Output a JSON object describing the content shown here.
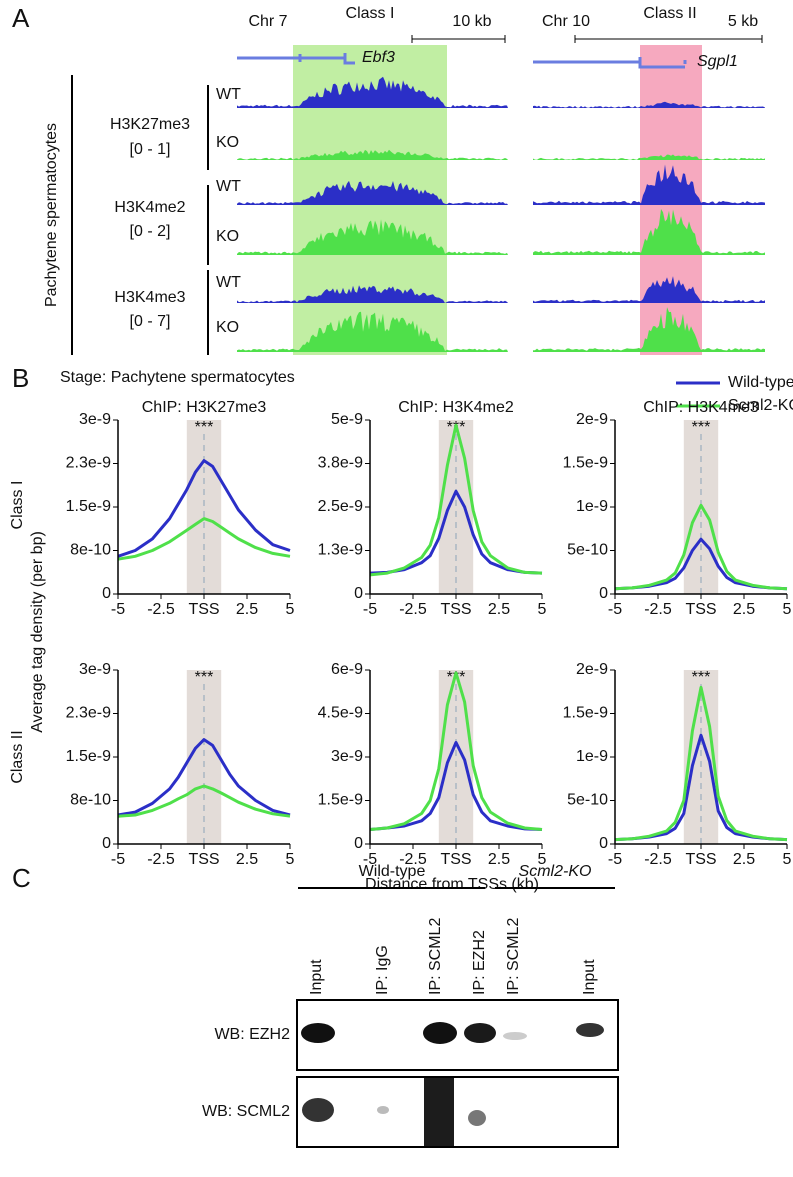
{
  "panel_a": {
    "label": "A",
    "chr_left": "Chr 7",
    "class_left": "Class I",
    "scale_left": "10 kb",
    "chr_right": "Chr 10",
    "class_right": "Class II",
    "scale_right": "5 kb",
    "gene_left": "Ebf3",
    "gene_right": "Sgpl1",
    "cell_type": "Pachytene spermatocytes",
    "groups": [
      {
        "mark": "H3K27me3",
        "range": "[0 - 1]",
        "wt": "WT",
        "ko": "KO"
      },
      {
        "mark": "H3K4me2",
        "range": "[0 - 2]",
        "wt": "WT",
        "ko": "KO"
      },
      {
        "mark": "H3K4me3",
        "range": "[0 - 7]",
        "wt": "WT",
        "ko": "KO"
      }
    ]
  },
  "panel_b": {
    "label": "B",
    "stage": "Stage: Pachytene spermatocytes",
    "rows": [
      "Class I",
      "Class II"
    ],
    "ylabel": "Average tag density (per bp)",
    "xlabel": "Distance from TSSs (kb)"
  },
  "chart_data": [
    {
      "type": "line",
      "title": "ChIP: H3K27me3",
      "annotation": "***",
      "highlight": [
        -1,
        1
      ],
      "x": [
        -5,
        -4,
        -3,
        -2,
        -1.5,
        -1,
        -0.5,
        0,
        0.5,
        1,
        1.5,
        2,
        3,
        4,
        5
      ],
      "xlim": [
        -5,
        5
      ],
      "xticks": [
        -5,
        -2.5,
        {
          "value": 0,
          "label": "TSS"
        },
        2.5,
        5
      ],
      "ylim": [
        0,
        3e-09
      ],
      "yticks": [
        0,
        {
          "value": 7.5e-10,
          "label": "8e-10"
        },
        1.5e-09,
        {
          "value": 2.25e-09,
          "label": "2.3e-9"
        },
        3e-09
      ],
      "series": [
        {
          "name": "Wild-type",
          "color": "#2b2fc7",
          "values": [
            6.5e-10,
            7.5e-10,
            9.5e-10,
            1.3e-09,
            1.55e-09,
            1.8e-09,
            2.1e-09,
            2.3e-09,
            2.2e-09,
            1.95e-09,
            1.7e-09,
            1.45e-09,
            1.1e-09,
            8.5e-10,
            7.5e-10
          ]
        },
        {
          "name": "Scml2-KO",
          "color": "#4fe04a",
          "values": [
            6e-10,
            6.5e-10,
            7.5e-10,
            9e-10,
            1e-09,
            1.1e-09,
            1.2e-09,
            1.3e-09,
            1.25e-09,
            1.15e-09,
            1.05e-09,
            9.5e-10,
            8e-10,
            7e-10,
            6.5e-10
          ]
        }
      ]
    },
    {
      "type": "line",
      "title": "ChIP: H3K4me2",
      "annotation": "***",
      "highlight": [
        -1,
        1
      ],
      "x": [
        -5,
        -4,
        -3,
        -2,
        -1.5,
        -1,
        -0.5,
        0,
        0.5,
        1,
        1.5,
        2,
        3,
        4,
        5
      ],
      "xlim": [
        -5,
        5
      ],
      "xticks": [
        -5,
        -2.5,
        {
          "value": 0,
          "label": "TSS"
        },
        2.5,
        5
      ],
      "ylim": [
        0,
        5e-09
      ],
      "yticks": [
        0,
        {
          "value": 1.25e-09,
          "label": "1.3e-9"
        },
        2.5e-09,
        {
          "value": 3.75e-09,
          "label": "3.8e-9"
        },
        5e-09
      ],
      "series": [
        {
          "name": "Wild-type",
          "color": "#2b2fc7",
          "values": [
            6e-10,
            6.2e-10,
            7e-10,
            9e-10,
            1.1e-09,
            1.6e-09,
            2.4e-09,
            2.95e-09,
            2.5e-09,
            1.7e-09,
            1.15e-09,
            9e-10,
            7e-10,
            6.2e-10,
            6e-10
          ]
        },
        {
          "name": "Scml2-KO",
          "color": "#4fe04a",
          "values": [
            5.5e-10,
            6e-10,
            7.5e-10,
            1.05e-09,
            1.4e-09,
            2.2e-09,
            3.7e-09,
            4.85e-09,
            3.9e-09,
            2.4e-09,
            1.5e-09,
            1.1e-09,
            7.5e-10,
            6.2e-10,
            6e-10
          ]
        }
      ]
    },
    {
      "type": "line",
      "title": "ChIP: H3K4me3",
      "annotation": "***",
      "highlight": [
        -1,
        1
      ],
      "x": [
        -5,
        -4,
        -3,
        -2,
        -1.5,
        -1,
        -0.5,
        0,
        0.5,
        1,
        1.5,
        2,
        3,
        4,
        5
      ],
      "xlim": [
        -5,
        5
      ],
      "xticks": [
        -5,
        -2.5,
        {
          "value": 0,
          "label": "TSS"
        },
        2.5,
        5
      ],
      "ylim": [
        0,
        2e-09
      ],
      "yticks": [
        0,
        5e-10,
        1e-09,
        1.5e-09,
        2e-09
      ],
      "series": [
        {
          "name": "Wild-type",
          "color": "#2b2fc7",
          "values": [
            6e-11,
            7e-11,
            9e-11,
            1.3e-10,
            1.8e-10,
            3e-10,
            5e-10,
            6.3e-10,
            5.2e-10,
            3.2e-10,
            1.9e-10,
            1.3e-10,
            9e-11,
            7e-11,
            6e-11
          ]
        },
        {
          "name": "Scml2-KO",
          "color": "#4fe04a",
          "values": [
            6e-11,
            7e-11,
            1e-10,
            1.6e-10,
            2.4e-10,
            4.5e-10,
            8.2e-10,
            1.02e-09,
            8.5e-10,
            4.8e-10,
            2.6e-10,
            1.6e-10,
            1e-10,
            7e-11,
            6e-11
          ]
        }
      ]
    },
    {
      "type": "line",
      "annotation": "***",
      "highlight": [
        -1,
        1
      ],
      "x": [
        -5,
        -4,
        -3,
        -2,
        -1.5,
        -1,
        -0.5,
        0,
        0.5,
        1,
        1.5,
        2,
        3,
        4,
        5
      ],
      "xlim": [
        -5,
        5
      ],
      "xticks": [
        -5,
        -2.5,
        {
          "value": 0,
          "label": "TSS"
        },
        2.5,
        5
      ],
      "ylim": [
        0,
        3e-09
      ],
      "yticks": [
        0,
        {
          "value": 7.5e-10,
          "label": "8e-10"
        },
        1.5e-09,
        {
          "value": 2.25e-09,
          "label": "2.3e-9"
        },
        3e-09
      ],
      "series": [
        {
          "name": "Wild-type",
          "color": "#2b2fc7",
          "values": [
            5e-10,
            5.5e-10,
            7e-10,
            9.5e-10,
            1.15e-09,
            1.4e-09,
            1.65e-09,
            1.8e-09,
            1.7e-09,
            1.45e-09,
            1.2e-09,
            1e-09,
            7.5e-10,
            5.8e-10,
            5e-10
          ]
        },
        {
          "name": "Scml2-KO",
          "color": "#4fe04a",
          "values": [
            4.8e-10,
            5e-10,
            5.8e-10,
            7e-10,
            7.8e-10,
            8.5e-10,
            9.5e-10,
            1e-09,
            9.5e-10,
            8.8e-10,
            8e-10,
            7.2e-10,
            6e-10,
            5.2e-10,
            4.8e-10
          ]
        }
      ]
    },
    {
      "type": "line",
      "annotation": "***",
      "highlight": [
        -1,
        1
      ],
      "x": [
        -5,
        -4,
        -3,
        -2,
        -1.5,
        -1,
        -0.5,
        0,
        0.5,
        1,
        1.5,
        2,
        3,
        4,
        5
      ],
      "xlim": [
        -5,
        5
      ],
      "xticks": [
        -5,
        -2.5,
        {
          "value": 0,
          "label": "TSS"
        },
        2.5,
        5
      ],
      "ylim": [
        0,
        6e-09
      ],
      "yticks": [
        0,
        1.5e-09,
        3e-09,
        4.5e-09,
        6e-09
      ],
      "series": [
        {
          "name": "Wild-type",
          "color": "#2b2fc7",
          "values": [
            5e-10,
            5.5e-10,
            6.2e-10,
            8e-10,
            1.05e-09,
            1.6e-09,
            2.8e-09,
            3.5e-09,
            2.9e-09,
            1.7e-09,
            1.1e-09,
            8e-10,
            6.2e-10,
            5.2e-10,
            5e-10
          ]
        },
        {
          "name": "Scml2-KO",
          "color": "#4fe04a",
          "values": [
            5e-10,
            5.5e-10,
            7e-10,
            1.05e-09,
            1.5e-09,
            2.6e-09,
            4.8e-09,
            5.9e-09,
            4.9e-09,
            2.7e-09,
            1.6e-09,
            1.1e-09,
            7.2e-10,
            5.5e-10,
            5e-10
          ]
        }
      ]
    },
    {
      "type": "line",
      "annotation": "***",
      "highlight": [
        -1,
        1
      ],
      "x": [
        -5,
        -4,
        -3,
        -2,
        -1.5,
        -1,
        -0.5,
        0,
        0.5,
        1,
        1.5,
        2,
        3,
        4,
        5
      ],
      "xlim": [
        -5,
        5
      ],
      "xticks": [
        -5,
        -2.5,
        {
          "value": 0,
          "label": "TSS"
        },
        2.5,
        5
      ],
      "ylim": [
        0,
        2e-09
      ],
      "yticks": [
        0,
        5e-10,
        1e-09,
        1.5e-09,
        2e-09
      ],
      "series": [
        {
          "name": "Wild-type",
          "color": "#2b2fc7",
          "values": [
            5e-11,
            6e-11,
            8e-11,
            1.2e-10,
            1.8e-10,
            3.5e-10,
            9e-10,
            1.25e-09,
            9.5e-10,
            3.8e-10,
            1.9e-10,
            1.2e-10,
            8e-11,
            6e-11,
            5e-11
          ]
        },
        {
          "name": "Scml2-KO",
          "color": "#4fe04a",
          "values": [
            5e-11,
            6e-11,
            9e-11,
            1.5e-10,
            2.5e-10,
            5e-10,
            1.3e-09,
            1.8e-09,
            1.35e-09,
            5.5e-10,
            2.7e-10,
            1.5e-10,
            9e-11,
            6e-11,
            5e-11
          ]
        }
      ]
    }
  ],
  "panel_c": {
    "label": "C",
    "group_wt": "Wild-type",
    "group_ko": "Scml2-KO",
    "lanes": [
      "Input",
      "IP: IgG",
      "IP: SCML2",
      "IP: EZH2",
      "IP: SCML2",
      "Input"
    ],
    "blots": [
      "WB: EZH2",
      "WB: SCML2"
    ]
  }
}
